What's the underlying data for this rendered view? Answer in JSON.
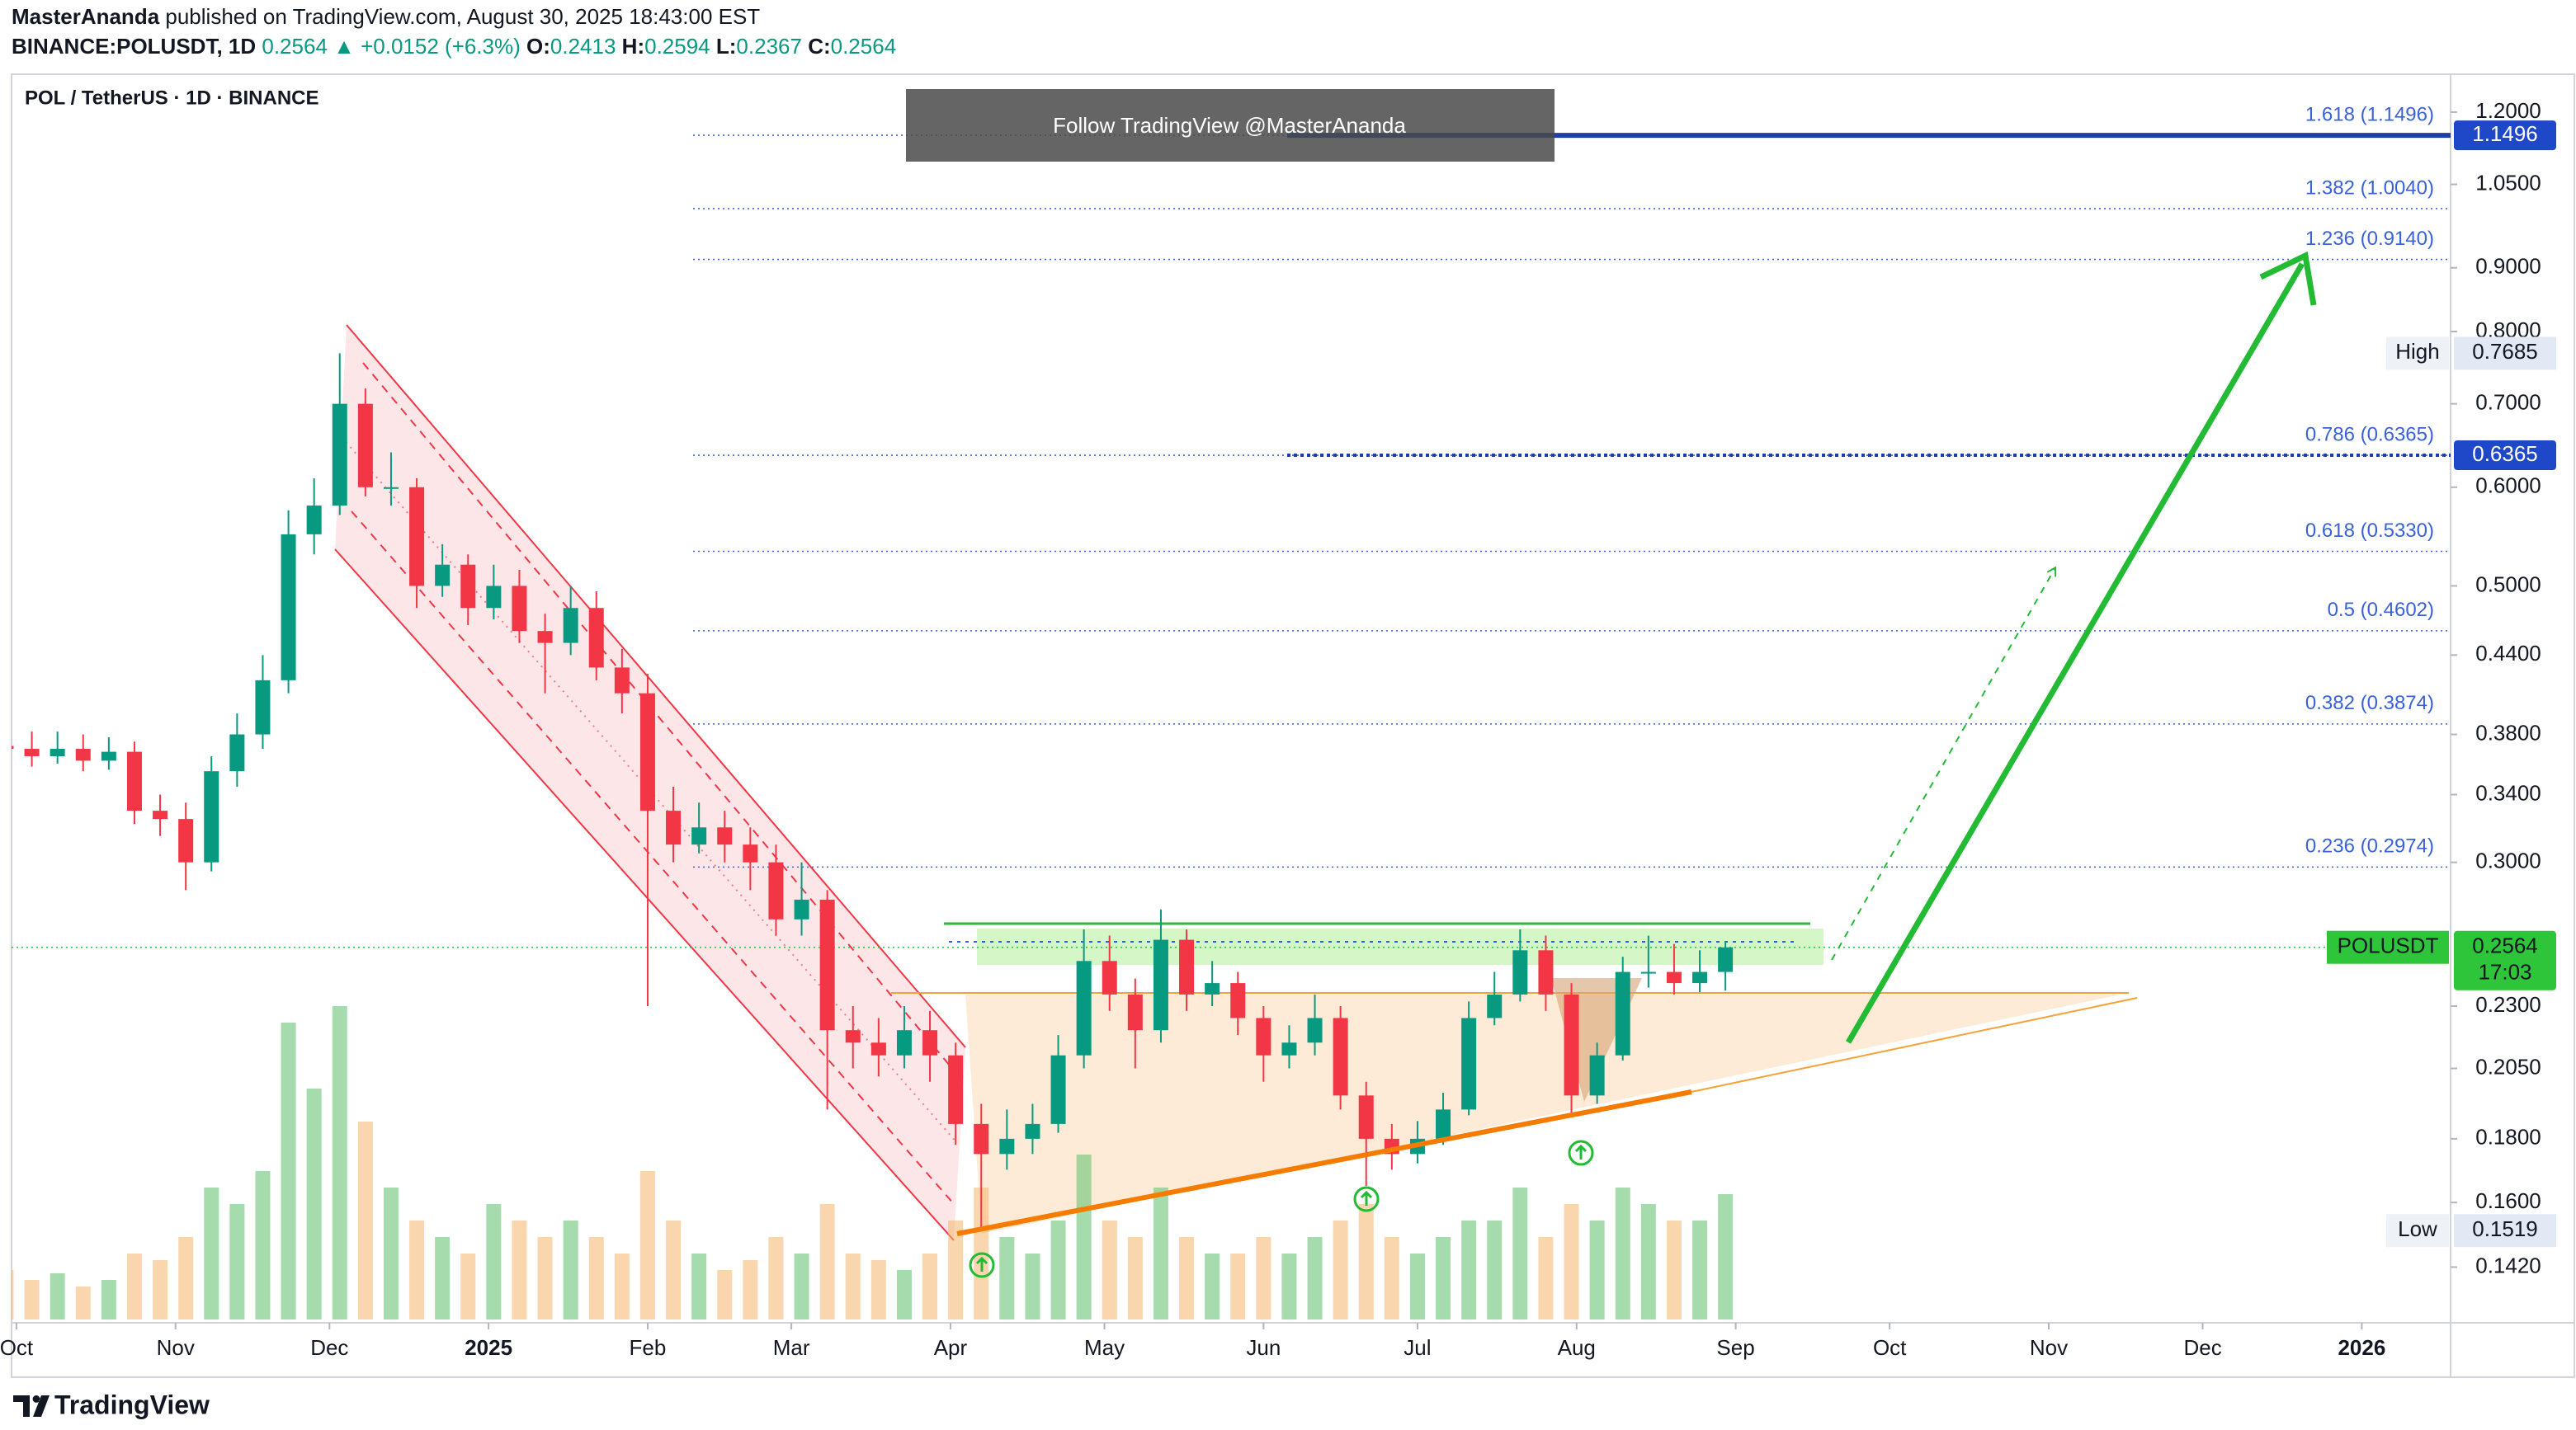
{
  "header": {
    "author": "MasterAnanda",
    "published": "published on TradingView.com, August 30, 2025 18:43:00 EST",
    "symbol": "BINANCE:POLUSDT, 1D",
    "change": "0.2564 ▲ +0.0152 (+6.3%)",
    "ohlc": [
      {
        "key": "O:",
        "value": "0.2413"
      },
      {
        "key": "H:",
        "value": "0.2594"
      },
      {
        "key": "L:",
        "value": "0.2367"
      },
      {
        "key": "C:",
        "value": "0.2564"
      }
    ],
    "watermark": "Follow TradingView @MasterAnanda",
    "brand": "TradingView"
  },
  "chart_data": {
    "type": "candlestick",
    "title": "POL / TetherUS · 1D · BINANCE",
    "log_scale": true,
    "grid": false,
    "up_color": "#089981",
    "down_color": "#f23645",
    "fib_color": "#3a62d8",
    "last_color": "#2fc53a",
    "x": [
      -2,
      3,
      8,
      13,
      18,
      23,
      28,
      33,
      38,
      43,
      48,
      53,
      58,
      63,
      68,
      73,
      78,
      83,
      88,
      93,
      98,
      103,
      108,
      113,
      118,
      123,
      128,
      133,
      138,
      143,
      148,
      153,
      158,
      163,
      168,
      173,
      178,
      183,
      188,
      193,
      198,
      203,
      208,
      213,
      218,
      223,
      228,
      233,
      238,
      243,
      248,
      253,
      258,
      263,
      268,
      273,
      278,
      283,
      288,
      293,
      298,
      303,
      308,
      313,
      318,
      323,
      328,
      333
    ],
    "open": [
      0.372,
      0.37,
      0.365,
      0.37,
      0.362,
      0.368,
      0.33,
      0.325,
      0.3,
      0.355,
      0.38,
      0.42,
      0.55,
      0.58,
      0.7,
      0.6,
      0.6,
      0.5,
      0.52,
      0.48,
      0.5,
      0.46,
      0.45,
      0.48,
      0.43,
      0.41,
      0.33,
      0.31,
      0.32,
      0.31,
      0.3,
      0.27,
      0.28,
      0.22,
      0.215,
      0.21,
      0.22,
      0.21,
      0.185,
      0.175,
      0.18,
      0.185,
      0.21,
      0.25,
      0.235,
      0.22,
      0.26,
      0.235,
      0.24,
      0.225,
      0.21,
      0.215,
      0.225,
      0.195,
      0.18,
      0.175,
      0.18,
      0.19,
      0.225,
      0.235,
      0.255,
      0.235,
      0.195,
      0.21,
      0.245,
      0.245,
      0.24,
      0.245
    ],
    "high": [
      0.385,
      0.382,
      0.382,
      0.38,
      0.378,
      0.375,
      0.34,
      0.335,
      0.365,
      0.395,
      0.44,
      0.575,
      0.61,
      0.7685,
      0.72,
      0.64,
      0.61,
      0.54,
      0.53,
      0.52,
      0.515,
      0.475,
      0.5,
      0.495,
      0.445,
      0.425,
      0.345,
      0.335,
      0.33,
      0.32,
      0.31,
      0.3,
      0.285,
      0.23,
      0.225,
      0.23,
      0.228,
      0.215,
      0.192,
      0.19,
      0.192,
      0.218,
      0.265,
      0.262,
      0.242,
      0.275,
      0.265,
      0.25,
      0.245,
      0.23,
      0.222,
      0.235,
      0.23,
      0.2,
      0.185,
      0.186,
      0.196,
      0.232,
      0.245,
      0.265,
      0.262,
      0.24,
      0.215,
      0.252,
      0.262,
      0.258,
      0.255,
      0.2594
    ],
    "low": [
      0.36,
      0.358,
      0.36,
      0.355,
      0.356,
      0.322,
      0.315,
      0.285,
      0.295,
      0.345,
      0.37,
      0.41,
      0.53,
      0.57,
      0.59,
      0.58,
      0.48,
      0.49,
      0.465,
      0.47,
      0.45,
      0.41,
      0.44,
      0.42,
      0.395,
      0.23,
      0.3,
      0.305,
      0.3,
      0.285,
      0.262,
      0.262,
      0.19,
      0.205,
      0.202,
      0.205,
      0.2,
      0.178,
      0.1519,
      0.17,
      0.175,
      0.182,
      0.205,
      0.228,
      0.205,
      0.215,
      0.228,
      0.23,
      0.218,
      0.2,
      0.205,
      0.21,
      0.19,
      0.165,
      0.17,
      0.172,
      0.178,
      0.188,
      0.222,
      0.232,
      0.228,
      0.188,
      0.192,
      0.208,
      0.238,
      0.235,
      0.236,
      0.2367
    ],
    "close": [
      0.37,
      0.365,
      0.37,
      0.362,
      0.368,
      0.33,
      0.325,
      0.3,
      0.355,
      0.38,
      0.42,
      0.55,
      0.58,
      0.7,
      0.6,
      0.6,
      0.5,
      0.52,
      0.48,
      0.5,
      0.46,
      0.45,
      0.48,
      0.43,
      0.41,
      0.33,
      0.31,
      0.32,
      0.31,
      0.3,
      0.27,
      0.28,
      0.22,
      0.215,
      0.21,
      0.22,
      0.21,
      0.185,
      0.175,
      0.18,
      0.185,
      0.21,
      0.25,
      0.235,
      0.22,
      0.26,
      0.235,
      0.24,
      0.225,
      0.21,
      0.215,
      0.225,
      0.195,
      0.18,
      0.175,
      0.18,
      0.19,
      0.225,
      0.235,
      0.255,
      0.235,
      0.195,
      0.21,
      0.245,
      0.245,
      0.24,
      0.245,
      0.2564
    ],
    "volume": [
      15,
      12,
      14,
      10,
      12,
      20,
      18,
      25,
      40,
      35,
      45,
      90,
      70,
      95,
      60,
      40,
      30,
      25,
      20,
      35,
      30,
      25,
      30,
      25,
      20,
      45,
      30,
      20,
      15,
      18,
      25,
      20,
      35,
      20,
      18,
      15,
      20,
      30,
      40,
      25,
      20,
      30,
      50,
      30,
      25,
      40,
      25,
      20,
      20,
      25,
      20,
      25,
      30,
      35,
      25,
      20,
      25,
      30,
      30,
      40,
      25,
      35,
      30,
      40,
      35,
      30,
      30,
      38
    ],
    "xlim": [
      -3.2,
      474.3
    ],
    "xticks": [
      {
        "value": 0,
        "label": "Oct"
      },
      {
        "value": 31,
        "label": "Nov"
      },
      {
        "value": 61,
        "label": "Dec"
      },
      {
        "value": 92,
        "label": "2025"
      },
      {
        "value": 123,
        "label": "Feb"
      },
      {
        "value": 151,
        "label": "Mar"
      },
      {
        "value": 182,
        "label": "Apr"
      },
      {
        "value": 212,
        "label": "May"
      },
      {
        "value": 243,
        "label": "Jun"
      },
      {
        "value": 273,
        "label": "Jul"
      },
      {
        "value": 304,
        "label": "Aug"
      },
      {
        "value": 335,
        "label": "Sep"
      },
      {
        "value": 365,
        "label": "Oct"
      },
      {
        "value": 396,
        "label": "Nov"
      },
      {
        "value": 426,
        "label": "Dec"
      },
      {
        "value": 457,
        "label": "2026"
      }
    ],
    "ylim": [
      0.1289,
      1.287
    ],
    "yticks": [
      {
        "value": 1.2,
        "label": "1.2000"
      },
      {
        "value": 1.05,
        "label": "1.0500"
      },
      {
        "value": 0.9,
        "label": "0.9000"
      },
      {
        "value": 0.8,
        "label": "0.8000"
      },
      {
        "value": 0.7,
        "label": "0.7000"
      },
      {
        "value": 0.6,
        "label": "0.6000"
      },
      {
        "value": 0.5,
        "label": "0.5000"
      },
      {
        "value": 0.44,
        "label": "0.4400"
      },
      {
        "value": 0.38,
        "label": "0.3800"
      },
      {
        "value": 0.34,
        "label": "0.3400"
      },
      {
        "value": 0.3,
        "label": "0.3000"
      },
      {
        "value": 0.23,
        "label": "0.2300"
      },
      {
        "value": 0.205,
        "label": "0.2050"
      },
      {
        "value": 0.18,
        "label": "0.1800"
      },
      {
        "value": 0.16,
        "label": "0.1600"
      },
      {
        "value": 0.142,
        "label": "0.1420"
      }
    ],
    "fib_levels": [
      {
        "label": "1.618 (1.1496)",
        "value": 1.1496
      },
      {
        "label": "1.382 (1.0040)",
        "value": 1.004
      },
      {
        "label": "1.236 (0.9140)",
        "value": 0.914
      },
      {
        "label": "0.786 (0.6365)",
        "value": 0.6365
      },
      {
        "label": "0.618 (0.5330)",
        "value": 0.533
      },
      {
        "label": "0.5 (0.4602)",
        "value": 0.4602
      },
      {
        "label": "0.382 (0.3874)",
        "value": 0.3874
      },
      {
        "label": "0.236 (0.2974)",
        "value": 0.2974
      }
    ],
    "level_labels": [
      1.1496,
      0.6365
    ],
    "high_marker": {
      "label": "High",
      "value": 0.7685
    },
    "low_marker": {
      "label": "Low",
      "value": 0.1519
    },
    "last_marker": {
      "label": "POLUSDT",
      "value": 0.2564,
      "countdown": "17:03"
    }
  }
}
